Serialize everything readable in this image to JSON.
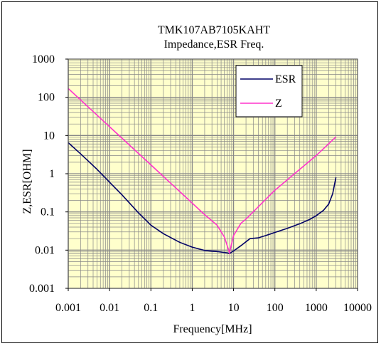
{
  "chart_data": {
    "type": "line",
    "title": "TMK107AB7105KAHT",
    "subtitle": "Impedance,ESR Freq.",
    "xlabel": "Frequency[MHz]",
    "ylabel": "Z,ESR[OHM]",
    "x_scale": "log",
    "y_scale": "log",
    "xlim": [
      0.001,
      10000
    ],
    "ylim": [
      0.001,
      1000
    ],
    "x_ticks": [
      "0.001",
      "0.01",
      "0.1",
      "1",
      "10",
      "100",
      "1000",
      "10000"
    ],
    "y_ticks": [
      "1000",
      "100",
      "10",
      "1",
      "0.1",
      "0.01",
      "0.001"
    ],
    "grid": true,
    "legend_position": "top-right",
    "plot_background": "#ffffcc",
    "series": [
      {
        "name": "ESR",
        "color": "#000066",
        "points": [
          [
            0.001,
            6.5
          ],
          [
            0.002,
            3.3
          ],
          [
            0.005,
            1.3
          ],
          [
            0.01,
            0.6
          ],
          [
            0.02,
            0.28
          ],
          [
            0.05,
            0.095
          ],
          [
            0.1,
            0.045
          ],
          [
            0.2,
            0.027
          ],
          [
            0.5,
            0.016
          ],
          [
            1,
            0.012
          ],
          [
            2,
            0.0098
          ],
          [
            4,
            0.0092
          ],
          [
            7,
            0.0085
          ],
          [
            8,
            0.0082
          ],
          [
            10,
            0.0095
          ],
          [
            15,
            0.013
          ],
          [
            25,
            0.02
          ],
          [
            40,
            0.021
          ],
          [
            60,
            0.024
          ],
          [
            100,
            0.029
          ],
          [
            200,
            0.037
          ],
          [
            400,
            0.049
          ],
          [
            700,
            0.064
          ],
          [
            1000,
            0.08
          ],
          [
            1500,
            0.11
          ],
          [
            2000,
            0.16
          ],
          [
            2500,
            0.3
          ],
          [
            3000,
            0.8
          ]
        ]
      },
      {
        "name": "Z",
        "color": "#ff33cc",
        "points": [
          [
            0.001,
            170
          ],
          [
            0.01,
            17
          ],
          [
            0.1,
            1.7
          ],
          [
            1,
            0.17
          ],
          [
            2,
            0.085
          ],
          [
            4,
            0.045
          ],
          [
            6,
            0.022
          ],
          [
            8,
            0.0085
          ],
          [
            9,
            0.015
          ],
          [
            10,
            0.024
          ],
          [
            15,
            0.05
          ],
          [
            20,
            0.065
          ],
          [
            100,
            0.37
          ],
          [
            1000,
            3
          ],
          [
            3000,
            9.2
          ]
        ]
      }
    ]
  }
}
